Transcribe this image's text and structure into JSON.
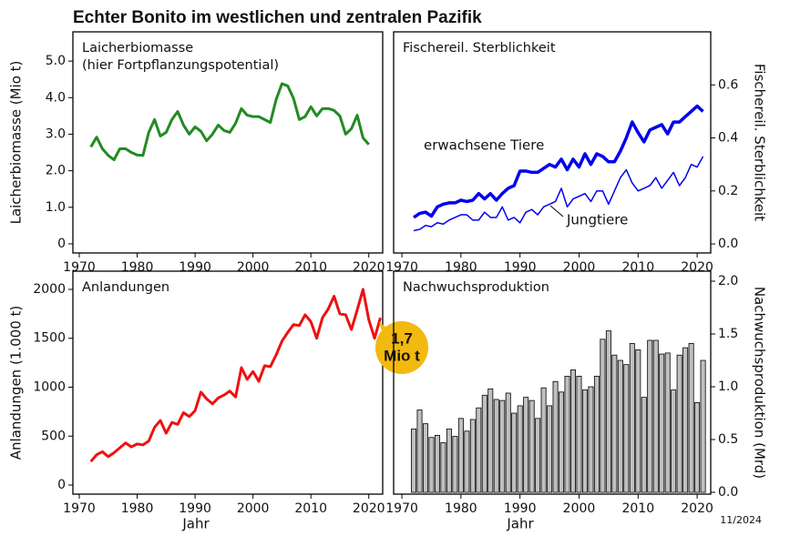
{
  "title": "Echter Bonito im westlichen und zentralen Pazifik",
  "date_note": "11/2024",
  "chart_data": [
    {
      "type": "line",
      "title_lines": [
        "Laicherbiomasse",
        "(hier Fortpflanzungspotential)"
      ],
      "ylabel": "Laicherbiomasse (Mio t)",
      "y_axis_side": "left",
      "color": "#228b22",
      "x": [
        1972,
        1973,
        1974,
        1975,
        1976,
        1977,
        1978,
        1979,
        1980,
        1981,
        1982,
        1983,
        1984,
        1985,
        1986,
        1987,
        1988,
        1989,
        1990,
        1991,
        1992,
        1993,
        1994,
        1995,
        1996,
        1997,
        1998,
        1999,
        2000,
        2001,
        2002,
        2003,
        2004,
        2005,
        2006,
        2007,
        2008,
        2009,
        2010,
        2011,
        2012,
        2013,
        2014,
        2015,
        2016,
        2017,
        2018,
        2019,
        2020
      ],
      "values": [
        2.65,
        2.92,
        2.6,
        2.42,
        2.3,
        2.6,
        2.6,
        2.5,
        2.43,
        2.42,
        3.05,
        3.4,
        2.95,
        3.05,
        3.4,
        3.62,
        3.25,
        3.0,
        3.2,
        3.08,
        2.82,
        3.0,
        3.25,
        3.1,
        3.05,
        3.3,
        3.7,
        3.52,
        3.48,
        3.48,
        3.4,
        3.32,
        3.95,
        4.38,
        4.32,
        3.98,
        3.4,
        3.48,
        3.75,
        3.5,
        3.7,
        3.7,
        3.65,
        3.5,
        3.0,
        3.15,
        3.52,
        2.9,
        2.72
      ],
      "xlim": [
        1968.9,
        2022.4
      ],
      "xticks": [
        1970,
        1980,
        1990,
        2000,
        2010,
        2020
      ],
      "ylim": [
        -0.25,
        5.8
      ],
      "yticks": [
        0,
        {
          "value": 1,
          "label": "1.0"
        },
        {
          "value": 2,
          "label": "2.0"
        },
        {
          "value": 3,
          "label": "3.0"
        },
        {
          "value": 4,
          "label": "4.0"
        },
        {
          "value": 5,
          "label": "5.0"
        }
      ]
    },
    {
      "type": "line",
      "title_lines": [
        "Fischereil. Sterblichkeit"
      ],
      "ylabel": "Fischereil. Sterblichkeit",
      "y_axis_side": "right",
      "x": [
        1972,
        1973,
        1974,
        1975,
        1976,
        1977,
        1978,
        1979,
        1980,
        1981,
        1982,
        1983,
        1984,
        1985,
        1986,
        1987,
        1988,
        1989,
        1990,
        1991,
        1992,
        1993,
        1994,
        1995,
        1996,
        1997,
        1998,
        1999,
        2000,
        2001,
        2002,
        2003,
        2004,
        2005,
        2006,
        2007,
        2008,
        2009,
        2010,
        2011,
        2012,
        2013,
        2014,
        2015,
        2016,
        2017,
        2018,
        2019,
        2020,
        2021
      ],
      "series": [
        {
          "name": "erwachsene Tiere",
          "color": "#0000ee",
          "width": 3.5,
          "values": [
            0.1,
            0.115,
            0.12,
            0.105,
            0.14,
            0.15,
            0.155,
            0.155,
            0.165,
            0.16,
            0.165,
            0.19,
            0.17,
            0.19,
            0.165,
            0.19,
            0.21,
            0.22,
            0.275,
            0.275,
            0.27,
            0.27,
            0.285,
            0.3,
            0.29,
            0.32,
            0.28,
            0.32,
            0.29,
            0.34,
            0.3,
            0.34,
            0.33,
            0.31,
            0.31,
            0.35,
            0.4,
            0.46,
            0.42,
            0.385,
            0.43,
            0.44,
            0.45,
            0.415,
            0.46,
            0.46,
            0.48,
            0.5,
            0.52,
            0.5
          ]
        },
        {
          "name": "Jungtiere",
          "color": "#0000ee",
          "width": 1.5,
          "values": [
            0.05,
            0.055,
            0.07,
            0.065,
            0.08,
            0.075,
            0.09,
            0.1,
            0.11,
            0.11,
            0.09,
            0.09,
            0.12,
            0.1,
            0.1,
            0.14,
            0.09,
            0.1,
            0.08,
            0.12,
            0.13,
            0.11,
            0.14,
            0.15,
            0.16,
            0.21,
            0.14,
            0.17,
            0.18,
            0.19,
            0.16,
            0.2,
            0.2,
            0.15,
            0.2,
            0.25,
            0.28,
            0.23,
            0.2,
            0.21,
            0.22,
            0.25,
            0.21,
            0.24,
            0.27,
            0.22,
            0.25,
            0.3,
            0.29,
            0.33
          ]
        }
      ],
      "xlim": [
        1968.6,
        2022.3
      ],
      "xticks": [
        1970,
        1980,
        1990,
        2000,
        2010,
        2020
      ],
      "ylim": [
        -0.034,
        0.8
      ],
      "yticks": [
        {
          "value": 0,
          "label": "0.0"
        },
        {
          "value": 0.2,
          "label": "0.2"
        },
        {
          "value": 0.4,
          "label": "0.4"
        },
        {
          "value": 0.6,
          "label": "0.6"
        }
      ]
    },
    {
      "type": "line",
      "title_lines": [
        "Anlandungen"
      ],
      "ylabel": "Anlandungen (1.000 t)",
      "xlabel": "Jahr",
      "y_axis_side": "left",
      "color": "#ee1111",
      "annotation": [
        "1,7",
        "Mio t"
      ],
      "x": [
        1972,
        1973,
        1974,
        1975,
        1976,
        1977,
        1978,
        1979,
        1980,
        1981,
        1982,
        1983,
        1984,
        1985,
        1986,
        1987,
        1988,
        1989,
        1990,
        1991,
        1992,
        1993,
        1994,
        1995,
        1996,
        1997,
        1998,
        1999,
        2000,
        2001,
        2002,
        2003,
        2004,
        2005,
        2006,
        2007,
        2008,
        2009,
        2010,
        2011,
        2012,
        2013,
        2014,
        2015,
        2016,
        2017,
        2018,
        2019,
        2020,
        2021,
        2022
      ],
      "values": [
        240,
        310,
        340,
        290,
        330,
        380,
        430,
        390,
        420,
        410,
        450,
        590,
        660,
        530,
        640,
        620,
        740,
        700,
        760,
        950,
        880,
        830,
        890,
        920,
        960,
        900,
        1200,
        1080,
        1160,
        1060,
        1220,
        1210,
        1330,
        1470,
        1560,
        1640,
        1630,
        1740,
        1670,
        1500,
        1710,
        1800,
        1930,
        1750,
        1740,
        1590,
        1790,
        2000,
        1690,
        1500,
        1710
      ],
      "xlim": [
        1968.9,
        2022.4
      ],
      "xticks": [
        1970,
        1980,
        1990,
        2000,
        2010,
        2020
      ],
      "ylim": [
        -93,
        2186
      ],
      "yticks": [
        0,
        500,
        1000,
        1500,
        2000
      ]
    },
    {
      "type": "bar",
      "title_lines": [
        "Nachwuchsproduktion"
      ],
      "ylabel": "Nachwuchsproduktion (Mrd)",
      "xlabel": "Jahr",
      "y_axis_side": "right",
      "color": "#c0c0c0",
      "x": [
        1972,
        1973,
        1974,
        1975,
        1976,
        1977,
        1978,
        1979,
        1980,
        1981,
        1982,
        1983,
        1984,
        1985,
        1986,
        1987,
        1988,
        1989,
        1990,
        1991,
        1992,
        1993,
        1994,
        1995,
        1996,
        1997,
        1998,
        1999,
        2000,
        2001,
        2002,
        2003,
        2004,
        2005,
        2006,
        2007,
        2008,
        2009,
        2010,
        2011,
        2012,
        2013,
        2014,
        2015,
        2016,
        2017,
        2018,
        2019,
        2020,
        2021
      ],
      "values": [
        0.6,
        0.78,
        0.65,
        0.52,
        0.54,
        0.47,
        0.6,
        0.53,
        0.7,
        0.58,
        0.69,
        0.8,
        0.92,
        0.98,
        0.88,
        0.87,
        0.94,
        0.75,
        0.82,
        0.9,
        0.87,
        0.7,
        0.99,
        0.82,
        1.05,
        0.95,
        1.1,
        1.16,
        1.1,
        0.97,
        1.0,
        1.1,
        1.45,
        1.53,
        1.3,
        1.25,
        1.21,
        1.41,
        1.35,
        0.9,
        1.44,
        1.44,
        1.31,
        1.32,
        0.97,
        1.3,
        1.37,
        1.41,
        0.85,
        1.25
      ],
      "xlim": [
        1968.6,
        2022.3
      ],
      "xticks": [
        1970,
        1980,
        1990,
        2000,
        2010,
        2020
      ],
      "ylim": [
        -0.017,
        2.095
      ],
      "yticks": [
        {
          "value": 0,
          "label": "0.0"
        },
        {
          "value": 0.5,
          "label": "0.5"
        },
        {
          "value": 1,
          "label": "1.0"
        },
        {
          "value": 1.5,
          "label": "1.5"
        },
        {
          "value": 2,
          "label": "2.0"
        }
      ]
    }
  ]
}
